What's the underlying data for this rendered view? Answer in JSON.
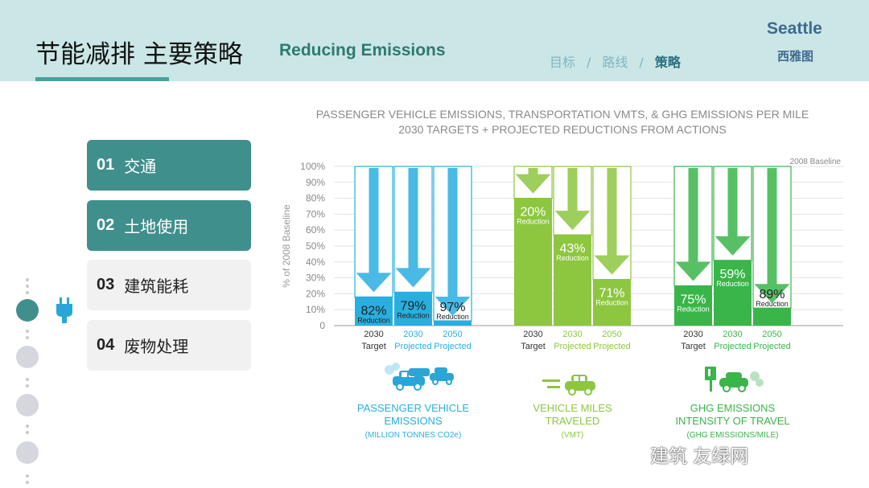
{
  "header": {
    "title_cn": "节能减排 主要策略",
    "title_en": "Reducing Emissions",
    "crumbs": [
      "目标",
      "路线",
      "策略"
    ],
    "crumb_sep": "/",
    "city_en": "Seattle",
    "city_cn": "西雅图"
  },
  "menu": [
    {
      "num": "01",
      "label": "交通",
      "active": true
    },
    {
      "num": "02",
      "label": "土地使用",
      "active": true
    },
    {
      "num": "03",
      "label": "建筑能耗",
      "active": false
    },
    {
      "num": "04",
      "label": "废物处理",
      "active": false
    }
  ],
  "icons": {
    "plug": "plug-icon",
    "car": "car-icon",
    "gas-pump": "gas-pump-icon"
  },
  "watermark": "建筑  友绿网",
  "chart_data": {
    "type": "bar",
    "title": "PASSENGER VEHICLE EMISSIONS, TRANSPORTATION VMTS, & GHG EMISSIONS PER MILE",
    "subtitle": "2030 TARGETS + PROJECTED REDUCTIONS FROM ACTIONS",
    "ylabel": "% of 2008 Baseline",
    "ylim": [
      0,
      100
    ],
    "yticks": [
      "0",
      "10%",
      "20%",
      "30%",
      "40%",
      "50%",
      "60%",
      "70%",
      "80%",
      "90%",
      "100%"
    ],
    "baseline_label": "2008 Baseline",
    "reduction_word": "Reduction",
    "groups": [
      {
        "name": "PASSENGER VEHICLE EMISSIONS",
        "sub": "(MILLION TONNES CO2e)",
        "color": "#29aee0",
        "bars": [
          {
            "year": "2030",
            "kind": "Target",
            "reduction": 82,
            "label": "82%"
          },
          {
            "year": "2030",
            "kind": "Projected",
            "reduction": 79,
            "label": "79%"
          },
          {
            "year": "2050",
            "kind": "Projected",
            "reduction": 97,
            "label": "97%"
          }
        ]
      },
      {
        "name": "VEHICLE MILES TRAVELED",
        "sub": "(VMT)",
        "color": "#8dc63f",
        "bars": [
          {
            "year": "2030",
            "kind": "Target",
            "reduction": 20,
            "label": "20%"
          },
          {
            "year": "2030",
            "kind": "Projected",
            "reduction": 43,
            "label": "43%"
          },
          {
            "year": "2050",
            "kind": "Projected",
            "reduction": 71,
            "label": "71%"
          }
        ]
      },
      {
        "name": "GHG EMISSIONS INTENSITY OF TRAVEL",
        "sub": "(GHG EMISSIONS/MILE)",
        "color": "#39b54a",
        "bars": [
          {
            "year": "2030",
            "kind": "Target",
            "reduction": 75,
            "label": "75%"
          },
          {
            "year": "2030",
            "kind": "Projected",
            "reduction": 59,
            "label": "59%"
          },
          {
            "year": "2050",
            "kind": "Projected",
            "reduction": 89,
            "label": "89%"
          }
        ]
      }
    ]
  }
}
